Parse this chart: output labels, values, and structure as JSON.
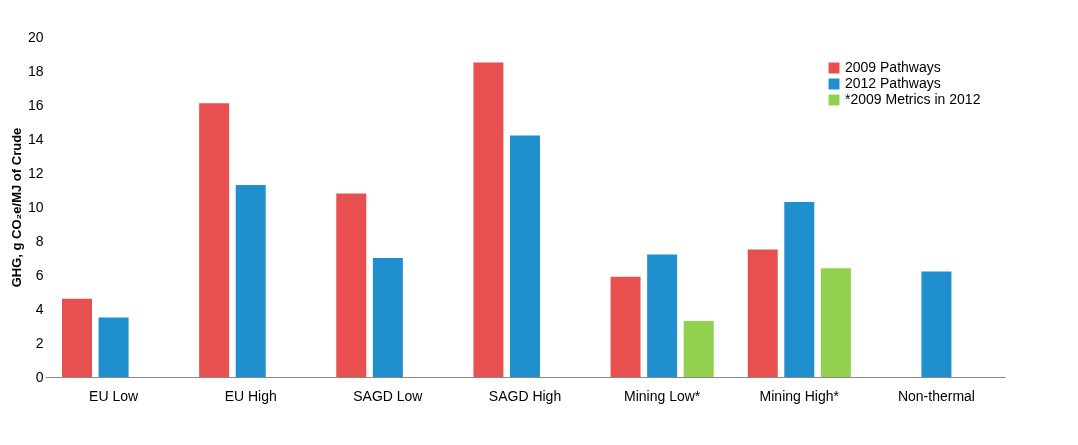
{
  "chart_data": {
    "type": "bar",
    "ylabel": "GHG, g CO₂e/MJ of Crude",
    "categories": [
      "EU Low",
      "EU High",
      "SAGD Low",
      "SAGD High",
      "Mining Low*",
      "Mining High*",
      "Non-thermal"
    ],
    "series": [
      {
        "name": "2009 Pathways",
        "color": "#e8504f",
        "values": [
          4.6,
          16.1,
          10.8,
          18.5,
          5.9,
          7.5,
          null
        ]
      },
      {
        "name": "2012 Pathways",
        "color": "#1f8fce",
        "values": [
          3.5,
          11.3,
          7.0,
          14.2,
          7.2,
          10.3,
          6.2
        ]
      },
      {
        "name": "*2009 Metrics in 2012",
        "color": "#92d050",
        "values": [
          null,
          null,
          null,
          null,
          3.3,
          6.4,
          null
        ]
      }
    ],
    "ylim": [
      0,
      20
    ],
    "yticks": [
      0,
      2,
      4,
      6,
      8,
      10,
      12,
      14,
      16,
      18,
      20
    ],
    "grid": false,
    "legend": "top right"
  }
}
